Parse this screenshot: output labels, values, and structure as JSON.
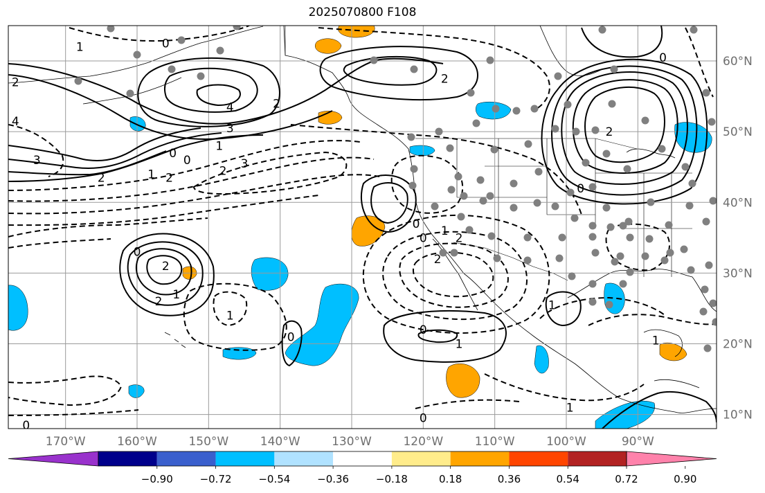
{
  "title": "2025070800 F108",
  "map": {
    "lon_range": [
      -178,
      -79
    ],
    "lat_range": [
      8,
      65
    ],
    "lat_labels": [
      "60°N",
      "50°N",
      "40°N",
      "30°N",
      "20°N",
      "10°N"
    ],
    "lat_values": [
      60,
      50,
      40,
      30,
      20,
      10
    ],
    "lon_labels": [
      "170°W",
      "160°W",
      "150°W",
      "140°W",
      "130°W",
      "120°W",
      "110°W",
      "100°W",
      "90°W"
    ],
    "lon_values": [
      -170,
      -160,
      -150,
      -140,
      -130,
      -120,
      -110,
      -100,
      -90
    ],
    "contour_labels": [
      {
        "text": "1",
        "lon": -168,
        "lat": 62
      },
      {
        "text": "0",
        "lon": -156,
        "lat": 62.5
      },
      {
        "text": "2",
        "lon": -177,
        "lat": 57
      },
      {
        "text": "4",
        "lon": -177,
        "lat": 51.5
      },
      {
        "text": "3",
        "lon": -174,
        "lat": 46
      },
      {
        "text": "2",
        "lon": -165,
        "lat": 43.5
      },
      {
        "text": "4",
        "lon": -147,
        "lat": 53.5
      },
      {
        "text": "3",
        "lon": -147,
        "lat": 50.5
      },
      {
        "text": "2",
        "lon": -140.5,
        "lat": 54
      },
      {
        "text": "1",
        "lon": -148.5,
        "lat": 48
      },
      {
        "text": "0",
        "lon": -155,
        "lat": 47
      },
      {
        "text": "0",
        "lon": -153,
        "lat": 46
      },
      {
        "text": "1",
        "lon": -158,
        "lat": 44
      },
      {
        "text": "2",
        "lon": -155.5,
        "lat": 43.5
      },
      {
        "text": "3",
        "lon": -145,
        "lat": 45.5
      },
      {
        "text": "2",
        "lon": -148,
        "lat": 44.5
      },
      {
        "text": "2",
        "lon": -117,
        "lat": 57.5
      },
      {
        "text": "0",
        "lon": -86.5,
        "lat": 60.5
      },
      {
        "text": "2",
        "lon": -94,
        "lat": 50
      },
      {
        "text": "0",
        "lon": -98,
        "lat": 42
      },
      {
        "text": "0",
        "lon": -121,
        "lat": 37
      },
      {
        "text": "0",
        "lon": -120,
        "lat": 35
      },
      {
        "text": "1",
        "lon": -117,
        "lat": 36
      },
      {
        "text": "2",
        "lon": -115,
        "lat": 35
      },
      {
        "text": "2",
        "lon": -118,
        "lat": 32
      },
      {
        "text": "0",
        "lon": -160,
        "lat": 33
      },
      {
        "text": "2",
        "lon": -156,
        "lat": 31
      },
      {
        "text": "2",
        "lon": -157,
        "lat": 26
      },
      {
        "text": "1",
        "lon": -154.5,
        "lat": 27
      },
      {
        "text": "1",
        "lon": -147,
        "lat": 24
      },
      {
        "text": "0",
        "lon": -138.5,
        "lat": 21
      },
      {
        "text": "0",
        "lon": -120,
        "lat": 22
      },
      {
        "text": "1",
        "lon": -115,
        "lat": 20
      },
      {
        "text": "1",
        "lon": -102,
        "lat": 25.5
      },
      {
        "text": "1",
        "lon": -87.5,
        "lat": 20.5
      },
      {
        "text": "1",
        "lon": -99.5,
        "lat": 11
      },
      {
        "text": "0",
        "lon": -120,
        "lat": 9.5
      },
      {
        "text": "0",
        "lon": -175.5,
        "lat": 8.5
      }
    ]
  },
  "colorbar": {
    "colors": [
      "#9932cc",
      "#00008b",
      "#3a5fcd",
      "#00bfff",
      "#b0e2ff",
      "#ffffff",
      "#ffec8b",
      "#ffa500",
      "#ff4500",
      "#b22222",
      "#ff82ab"
    ],
    "tick_labels": [
      "−0.90",
      "−0.72",
      "−0.54",
      "−0.36",
      "−0.18",
      "0.18",
      "0.36",
      "0.54",
      "0.72",
      "0.90"
    ]
  }
}
